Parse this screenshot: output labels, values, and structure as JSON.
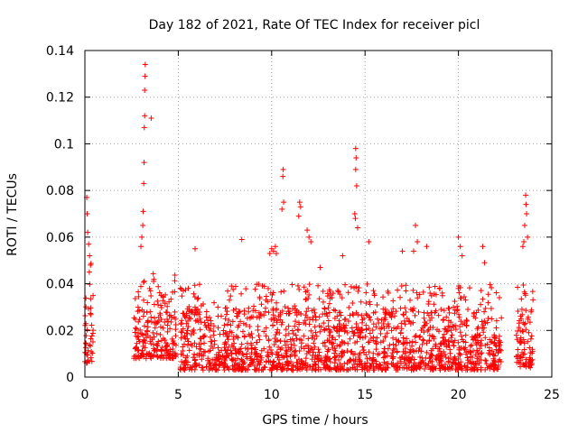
{
  "chart_data": {
    "type": "scatter",
    "title": "Day 182 of 2021, Rate Of TEC Index for receiver picl",
    "xlabel": "GPS time / hours",
    "ylabel": "ROTI / TECUs",
    "xlim": [
      0,
      25
    ],
    "ylim": [
      0,
      0.14
    ],
    "xticks": [
      0,
      5,
      10,
      15,
      20,
      25
    ],
    "yticks": [
      0,
      0.02,
      0.04,
      0.06,
      0.08,
      0.1,
      0.12,
      0.14
    ],
    "xtick_labels": [
      "0",
      "5",
      "10",
      "15",
      "20",
      "25"
    ],
    "ytick_labels": [
      "0",
      "0.02",
      "0.04",
      "0.06",
      "0.08",
      "0.1",
      "0.12",
      "0.14"
    ],
    "grid": true,
    "marker": "+",
    "color": "#ff0000",
    "series": [
      {
        "name": "ROTI",
        "segments": [
          {
            "start": 0.0,
            "end": 0.45,
            "typical_low": 0.006,
            "typical_high": 0.035,
            "peak": 0.05
          },
          {
            "start": 2.6,
            "end": 4.9,
            "typical_low": 0.008,
            "typical_high": 0.035,
            "peak": 0.045
          },
          {
            "start": 5.1,
            "end": 22.3,
            "typical_low": 0.003,
            "typical_high": 0.03,
            "peak": 0.04
          },
          {
            "start": 23.1,
            "end": 24.0,
            "typical_low": 0.004,
            "typical_high": 0.03,
            "peak": 0.04
          }
        ],
        "spikes": [
          {
            "x": 0.1,
            "y": 0.077
          },
          {
            "x": 0.12,
            "y": 0.07
          },
          {
            "x": 0.15,
            "y": 0.062
          },
          {
            "x": 0.2,
            "y": 0.057
          },
          {
            "x": 0.25,
            "y": 0.052
          },
          {
            "x": 0.3,
            "y": 0.048
          },
          {
            "x": 3.0,
            "y": 0.056
          },
          {
            "x": 3.05,
            "y": 0.06
          },
          {
            "x": 3.1,
            "y": 0.065
          },
          {
            "x": 3.12,
            "y": 0.071
          },
          {
            "x": 3.15,
            "y": 0.083
          },
          {
            "x": 3.17,
            "y": 0.092
          },
          {
            "x": 3.18,
            "y": 0.107
          },
          {
            "x": 3.2,
            "y": 0.112
          },
          {
            "x": 3.2,
            "y": 0.123
          },
          {
            "x": 3.22,
            "y": 0.129
          },
          {
            "x": 3.23,
            "y": 0.134
          },
          {
            "x": 3.55,
            "y": 0.111
          },
          {
            "x": 5.9,
            "y": 0.055
          },
          {
            "x": 8.4,
            "y": 0.059
          },
          {
            "x": 9.9,
            "y": 0.053
          },
          {
            "x": 10.0,
            "y": 0.055
          },
          {
            "x": 10.1,
            "y": 0.054
          },
          {
            "x": 10.2,
            "y": 0.056
          },
          {
            "x": 10.25,
            "y": 0.053
          },
          {
            "x": 10.6,
            "y": 0.086
          },
          {
            "x": 10.62,
            "y": 0.089
          },
          {
            "x": 10.64,
            "y": 0.075
          },
          {
            "x": 10.55,
            "y": 0.072
          },
          {
            "x": 11.5,
            "y": 0.075
          },
          {
            "x": 11.55,
            "y": 0.073
          },
          {
            "x": 11.45,
            "y": 0.069
          },
          {
            "x": 11.9,
            "y": 0.063
          },
          {
            "x": 12.0,
            "y": 0.06
          },
          {
            "x": 12.1,
            "y": 0.058
          },
          {
            "x": 12.6,
            "y": 0.047
          },
          {
            "x": 13.8,
            "y": 0.052
          },
          {
            "x": 14.5,
            "y": 0.098
          },
          {
            "x": 14.52,
            "y": 0.094
          },
          {
            "x": 14.5,
            "y": 0.089
          },
          {
            "x": 14.55,
            "y": 0.082
          },
          {
            "x": 14.45,
            "y": 0.07
          },
          {
            "x": 14.48,
            "y": 0.068
          },
          {
            "x": 14.6,
            "y": 0.064
          },
          {
            "x": 15.2,
            "y": 0.058
          },
          {
            "x": 17.0,
            "y": 0.054
          },
          {
            "x": 17.7,
            "y": 0.065
          },
          {
            "x": 17.8,
            "y": 0.058
          },
          {
            "x": 17.6,
            "y": 0.054
          },
          {
            "x": 18.3,
            "y": 0.056
          },
          {
            "x": 20.0,
            "y": 0.06
          },
          {
            "x": 20.1,
            "y": 0.056
          },
          {
            "x": 20.2,
            "y": 0.052
          },
          {
            "x": 21.3,
            "y": 0.056
          },
          {
            "x": 21.4,
            "y": 0.049
          },
          {
            "x": 23.6,
            "y": 0.078
          },
          {
            "x": 23.62,
            "y": 0.074
          },
          {
            "x": 23.65,
            "y": 0.07
          },
          {
            "x": 23.55,
            "y": 0.065
          },
          {
            "x": 23.7,
            "y": 0.06
          },
          {
            "x": 23.5,
            "y": 0.058
          },
          {
            "x": 23.45,
            "y": 0.056
          }
        ]
      }
    ]
  }
}
